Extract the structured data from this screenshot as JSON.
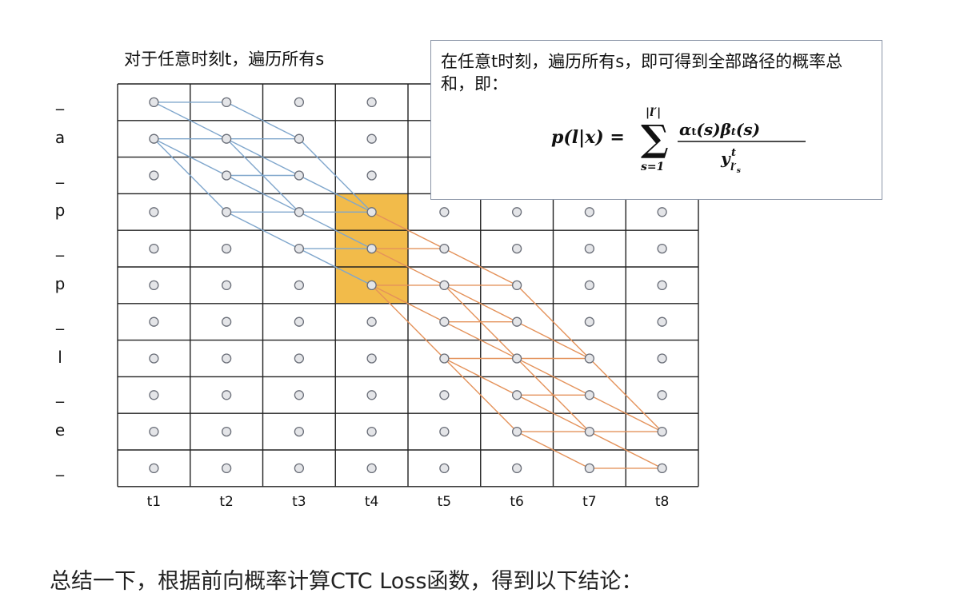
{
  "diagram": {
    "title": "对于任意时刻t，遍历所有s",
    "row_labels": [
      "_",
      "a",
      "_",
      "p",
      "_",
      "p",
      "_",
      "l",
      "_",
      "e",
      "_"
    ],
    "col_labels": [
      "t1",
      "t2",
      "t3",
      "t4",
      "t5",
      "t6",
      "t7",
      "t8"
    ],
    "highlight": {
      "column": "t4",
      "rows": [
        3,
        4,
        5
      ],
      "color": "#F2BB4A"
    },
    "colors": {
      "forward_edges": "#7FA6CC",
      "backward_edges": "#E4925A",
      "grid": "#222222",
      "node_fill": "#E4E5E8",
      "node_stroke": "#6A6E78"
    },
    "forward_edges": [
      [
        1,
        0,
        2,
        0
      ],
      [
        1,
        0,
        2,
        1
      ],
      [
        1,
        1,
        2,
        1
      ],
      [
        1,
        1,
        2,
        2
      ],
      [
        1,
        1,
        2,
        3
      ],
      [
        2,
        0,
        3,
        1
      ],
      [
        2,
        1,
        3,
        1
      ],
      [
        2,
        1,
        3,
        2
      ],
      [
        2,
        1,
        3,
        3
      ],
      [
        2,
        2,
        3,
        2
      ],
      [
        2,
        2,
        3,
        3
      ],
      [
        2,
        3,
        3,
        3
      ],
      [
        2,
        3,
        3,
        4
      ],
      [
        3,
        1,
        4,
        3
      ],
      [
        3,
        2,
        4,
        3
      ],
      [
        3,
        3,
        4,
        3
      ],
      [
        3,
        3,
        4,
        4
      ],
      [
        3,
        4,
        4,
        4
      ],
      [
        3,
        4,
        4,
        5
      ]
    ],
    "backward_edges": [
      [
        4,
        3,
        5,
        4
      ],
      [
        4,
        4,
        5,
        4
      ],
      [
        4,
        4,
        5,
        5
      ],
      [
        4,
        5,
        5,
        5
      ],
      [
        4,
        5,
        5,
        6
      ],
      [
        4,
        5,
        5,
        7
      ],
      [
        5,
        4,
        6,
        5
      ],
      [
        5,
        5,
        6,
        5
      ],
      [
        5,
        5,
        6,
        6
      ],
      [
        5,
        5,
        6,
        7
      ],
      [
        5,
        6,
        6,
        6
      ],
      [
        5,
        6,
        6,
        7
      ],
      [
        5,
        7,
        6,
        7
      ],
      [
        5,
        7,
        6,
        8
      ],
      [
        5,
        7,
        6,
        9
      ],
      [
        6,
        5,
        7,
        7
      ],
      [
        6,
        6,
        7,
        7
      ],
      [
        6,
        7,
        7,
        7
      ],
      [
        6,
        7,
        7,
        8
      ],
      [
        6,
        7,
        7,
        9
      ],
      [
        6,
        8,
        7,
        8
      ],
      [
        6,
        8,
        7,
        9
      ],
      [
        6,
        9,
        7,
        9
      ],
      [
        6,
        9,
        7,
        10
      ],
      [
        7,
        7,
        8,
        9
      ],
      [
        7,
        8,
        8,
        9
      ],
      [
        7,
        9,
        8,
        9
      ],
      [
        7,
        9,
        8,
        10
      ],
      [
        7,
        10,
        8,
        10
      ]
    ]
  },
  "callout": {
    "text": "在任意t时刻，遍历所有s，即可得到全部路径的概率总和，即：",
    "formula": "p(l|x) = Σ_{s=1}^{|l'|} α_t(s)β_t(s) / y^t_{l'_s}"
  },
  "summary": "总结一下，根据前向概率计算CTC Loss函数，得到以下结论："
}
